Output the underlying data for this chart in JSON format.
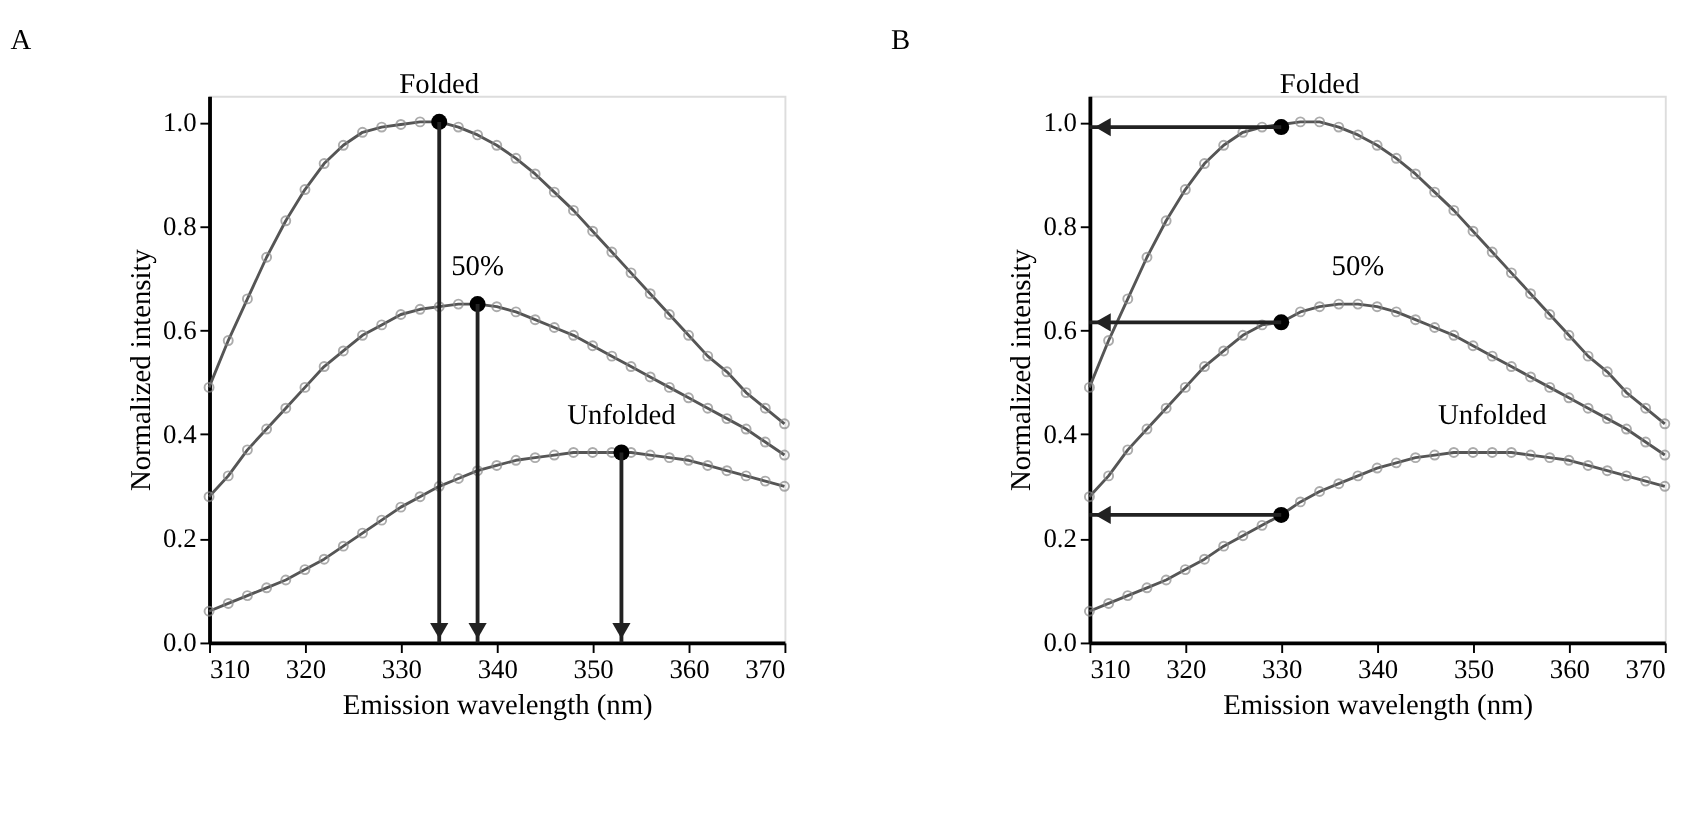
{
  "chart_data": [
    {
      "type": "line",
      "title": "A",
      "xlabel": "Emission wavelength (nm)",
      "ylabel": "Normalized intensity",
      "x": [
        310,
        312,
        314,
        316,
        318,
        320,
        322,
        324,
        326,
        328,
        330,
        332,
        334,
        336,
        338,
        340,
        342,
        344,
        346,
        348,
        350,
        352,
        354,
        356,
        358,
        360,
        362,
        364,
        366,
        368,
        370
      ],
      "xlim": [
        310,
        370
      ],
      "ylim": [
        0,
        1.05
      ],
      "xticks": [
        310,
        320,
        330,
        340,
        350,
        360,
        370
      ],
      "yticks": [
        {
          "value": 0,
          "label": "0.0"
        },
        {
          "value": 0.2,
          "label": "0.2"
        },
        {
          "value": 0.4,
          "label": "0.4"
        },
        {
          "value": 0.6,
          "label": "0.6"
        },
        {
          "value": 0.8,
          "label": "0.8"
        },
        {
          "value": 1,
          "label": "1.0"
        }
      ],
      "grid": false,
      "series": [
        {
          "color": "#555555",
          "marker": "circle",
          "values": [
            0.49,
            0.58,
            0.66,
            0.74,
            0.81,
            0.87,
            0.92,
            0.955,
            0.98,
            0.99,
            0.995,
            1.0,
            1.0,
            0.99,
            0.975,
            0.955,
            0.93,
            0.9,
            0.865,
            0.83,
            0.79,
            0.75,
            0.71,
            0.67,
            0.63,
            0.59,
            0.55,
            0.52,
            0.48,
            0.45,
            0.42
          ]
        },
        {
          "color": "#555555",
          "marker": "circle",
          "values": [
            0.28,
            0.32,
            0.37,
            0.41,
            0.45,
            0.49,
            0.53,
            0.56,
            0.59,
            0.61,
            0.63,
            0.64,
            0.645,
            0.65,
            0.65,
            0.645,
            0.635,
            0.62,
            0.605,
            0.59,
            0.57,
            0.55,
            0.53,
            0.51,
            0.49,
            0.47,
            0.45,
            0.43,
            0.41,
            0.385,
            0.36
          ]
        },
        {
          "color": "#555555",
          "marker": "circle",
          "values": [
            0.06,
            0.075,
            0.09,
            0.105,
            0.12,
            0.14,
            0.16,
            0.185,
            0.21,
            0.235,
            0.26,
            0.28,
            0.3,
            0.315,
            0.33,
            0.34,
            0.35,
            0.355,
            0.36,
            0.365,
            0.365,
            0.365,
            0.365,
            0.36,
            0.355,
            0.35,
            0.34,
            0.33,
            0.32,
            0.31,
            0.3
          ]
        },
        {
          "type": "scatter",
          "color": "#000000",
          "marker": "circle",
          "x": [
            334,
            338,
            353
          ],
          "values": [
            1.0,
            0.65,
            0.365
          ]
        }
      ],
      "ref_lines": [
        {
          "axis": "x",
          "value": 334,
          "color": "#222222"
        },
        {
          "axis": "x",
          "value": 338,
          "color": "#222222"
        },
        {
          "axis": "x",
          "value": 353,
          "color": "#222222"
        }
      ],
      "annotations": [
        {
          "text": "Folded",
          "x": 334,
          "y": 1.0
        },
        {
          "text": "50%",
          "x": 338,
          "y": 0.65
        },
        {
          "text": "Unfolded",
          "x": 353,
          "y": 0.365
        }
      ]
    },
    {
      "type": "line",
      "title": "B",
      "xlabel": "Emission wavelength (nm)",
      "ylabel": "Normalized intensity",
      "x": [
        310,
        312,
        314,
        316,
        318,
        320,
        322,
        324,
        326,
        328,
        330,
        332,
        334,
        336,
        338,
        340,
        342,
        344,
        346,
        348,
        350,
        352,
        354,
        356,
        358,
        360,
        362,
        364,
        366,
        368,
        370
      ],
      "xlim": [
        310,
        370
      ],
      "ylim": [
        0,
        1.05
      ],
      "xticks": [
        310,
        320,
        330,
        340,
        350,
        360,
        370
      ],
      "yticks": [
        {
          "value": 0,
          "label": "0.0"
        },
        {
          "value": 0.2,
          "label": "0.2"
        },
        {
          "value": 0.4,
          "label": "0.4"
        },
        {
          "value": 0.6,
          "label": "0.6"
        },
        {
          "value": 0.8,
          "label": "0.8"
        },
        {
          "value": 1,
          "label": "1.0"
        }
      ],
      "grid": false,
      "series": [
        {
          "color": "#555555",
          "marker": "circle",
          "values": [
            0.49,
            0.58,
            0.66,
            0.74,
            0.81,
            0.87,
            0.92,
            0.955,
            0.98,
            0.99,
            0.995,
            1.0,
            1.0,
            0.99,
            0.975,
            0.955,
            0.93,
            0.9,
            0.865,
            0.83,
            0.79,
            0.75,
            0.71,
            0.67,
            0.63,
            0.59,
            0.55,
            0.52,
            0.48,
            0.45,
            0.42
          ]
        },
        {
          "color": "#555555",
          "marker": "circle",
          "values": [
            0.28,
            0.32,
            0.37,
            0.41,
            0.45,
            0.49,
            0.53,
            0.56,
            0.59,
            0.61,
            0.615,
            0.635,
            0.645,
            0.65,
            0.65,
            0.645,
            0.635,
            0.62,
            0.605,
            0.59,
            0.57,
            0.55,
            0.53,
            0.51,
            0.49,
            0.47,
            0.45,
            0.43,
            0.41,
            0.385,
            0.36
          ]
        },
        {
          "color": "#555555",
          "marker": "circle",
          "values": [
            0.06,
            0.075,
            0.09,
            0.105,
            0.12,
            0.14,
            0.16,
            0.185,
            0.205,
            0.225,
            0.245,
            0.27,
            0.29,
            0.305,
            0.32,
            0.335,
            0.345,
            0.355,
            0.36,
            0.365,
            0.365,
            0.365,
            0.365,
            0.36,
            0.355,
            0.35,
            0.34,
            0.33,
            0.32,
            0.31,
            0.3
          ]
        },
        {
          "type": "scatter",
          "color": "#000000",
          "marker": "circle",
          "x": [
            330,
            330,
            330
          ],
          "values": [
            0.99,
            0.615,
            0.245
          ]
        }
      ],
      "ref_lines": [
        {
          "axis": "y",
          "value": 0.99,
          "color": "#222222"
        },
        {
          "axis": "y",
          "value": 0.615,
          "color": "#222222"
        },
        {
          "axis": "y",
          "value": 0.245,
          "color": "#222222"
        }
      ],
      "annotations": [
        {
          "text": "Folded",
          "x": 334,
          "y": 1.0
        },
        {
          "text": "50%",
          "x": 338,
          "y": 0.65
        },
        {
          "text": "Unfolded",
          "x": 352,
          "y": 0.365
        }
      ]
    }
  ]
}
